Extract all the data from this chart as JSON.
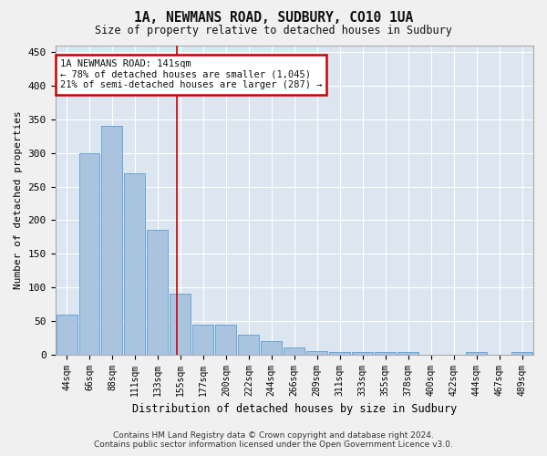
{
  "title": "1A, NEWMANS ROAD, SUDBURY, CO10 1UA",
  "subtitle": "Size of property relative to detached houses in Sudbury",
  "xlabel": "Distribution of detached houses by size in Sudbury",
  "ylabel": "Number of detached properties",
  "bar_labels": [
    "44sqm",
    "66sqm",
    "88sqm",
    "111sqm",
    "133sqm",
    "155sqm",
    "177sqm",
    "200sqm",
    "222sqm",
    "244sqm",
    "266sqm",
    "289sqm",
    "311sqm",
    "333sqm",
    "355sqm",
    "378sqm",
    "400sqm",
    "422sqm",
    "444sqm",
    "467sqm",
    "489sqm"
  ],
  "bar_values": [
    60,
    300,
    340,
    270,
    185,
    90,
    45,
    45,
    30,
    20,
    10,
    5,
    3,
    3,
    3,
    3,
    0,
    0,
    3,
    0,
    3
  ],
  "bar_color": "#aac4e0",
  "bar_edge_color": "#5a9fd4",
  "bg_color": "#dce6f0",
  "grid_color": "#ffffff",
  "red_line_x": 4.85,
  "annotation_text": "1A NEWMANS ROAD: 141sqm\n← 78% of detached houses are smaller (1,045)\n21% of semi-detached houses are larger (287) →",
  "annotation_box_color": "#ffffff",
  "annotation_box_edge": "#cc0000",
  "footer_line1": "Contains HM Land Registry data © Crown copyright and database right 2024.",
  "footer_line2": "Contains public sector information licensed under the Open Government Licence v3.0.",
  "ylim": [
    0,
    460
  ],
  "yticks": [
    0,
    50,
    100,
    150,
    200,
    250,
    300,
    350,
    400,
    450
  ],
  "fig_bg_color": "#f0f0f0"
}
